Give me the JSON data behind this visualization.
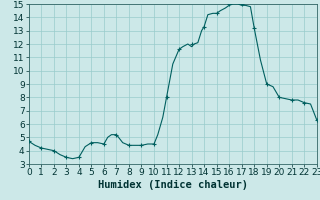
{
  "hours": [
    0,
    0.5,
    1,
    1.5,
    2,
    2.5,
    3,
    3.5,
    4,
    4.5,
    5,
    5.5,
    6,
    6.3,
    6.6,
    7,
    7.5,
    8,
    8.5,
    9,
    9.5,
    10,
    10.3,
    10.7,
    11,
    11.2,
    11.5,
    12,
    12.3,
    12.7,
    13,
    13.2,
    13.5,
    13.8,
    14,
    14.3,
    14.7,
    15,
    15.3,
    15.7,
    16,
    16.3,
    16.7,
    17,
    17.3,
    17.7,
    18,
    18.5,
    19,
    19.5,
    20,
    20.5,
    21,
    21.5,
    22,
    22.5,
    23
  ],
  "values": [
    4.7,
    4.4,
    4.2,
    4.1,
    4.0,
    3.7,
    3.5,
    3.4,
    3.5,
    4.3,
    4.6,
    4.6,
    4.5,
    5.0,
    5.2,
    5.2,
    4.6,
    4.4,
    4.4,
    4.4,
    4.5,
    4.5,
    5.2,
    6.5,
    8.0,
    9.0,
    10.5,
    11.6,
    11.8,
    12.0,
    11.8,
    12.0,
    12.1,
    13.0,
    13.3,
    14.2,
    14.3,
    14.3,
    14.5,
    14.7,
    14.9,
    15.0,
    15.0,
    14.9,
    14.9,
    14.8,
    13.2,
    10.8,
    9.0,
    8.8,
    8.0,
    7.9,
    7.8,
    7.8,
    7.6,
    7.5,
    6.3
  ],
  "mx": [
    0,
    1,
    2,
    3,
    4,
    5,
    6,
    7,
    8,
    9,
    10,
    11,
    12,
    13,
    14,
    15,
    16,
    17,
    18,
    19,
    20,
    21,
    22,
    23
  ],
  "my": [
    4.7,
    4.2,
    4.0,
    3.5,
    3.5,
    4.6,
    4.5,
    5.2,
    4.4,
    4.4,
    4.5,
    8.0,
    11.6,
    12.0,
    13.3,
    14.3,
    15.0,
    15.0,
    13.2,
    9.0,
    8.0,
    7.8,
    7.6,
    6.3
  ],
  "xlabel": "Humidex (Indice chaleur)",
  "ylim": [
    3,
    15
  ],
  "xlim": [
    0,
    23
  ],
  "line_color": "#005f5f",
  "bg_color": "#cce8e8",
  "grid_color": "#99cccc",
  "tick_fontsize": 6.5,
  "xlabel_fontsize": 7.5
}
